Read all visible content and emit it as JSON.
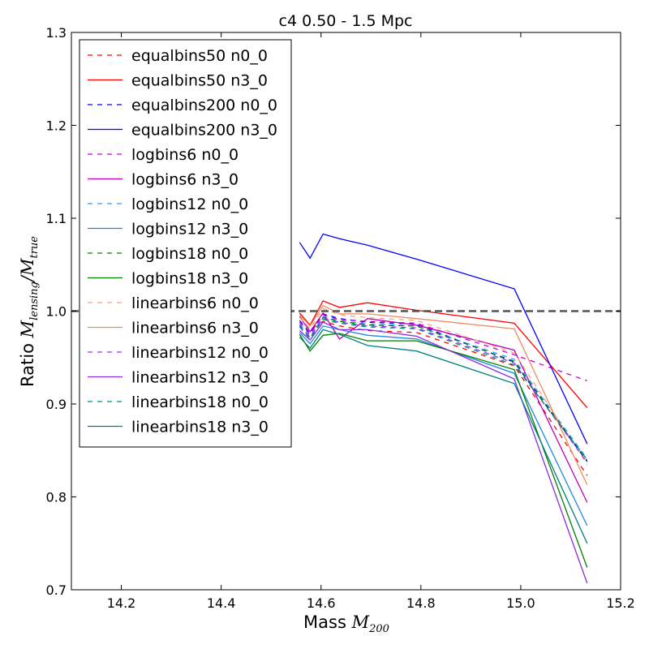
{
  "chart_data": {
    "type": "line",
    "title": "c4 0.50 - 1.5 Mpc",
    "xlabel_text": "Mass ",
    "xlabel_math": "M",
    "xlabel_sub": "200",
    "ylabel_text": "Ratio ",
    "ylabel_math_1": "M",
    "ylabel_sub_1": "lensing",
    "ylabel_slash": "/",
    "ylabel_math_2": "M",
    "ylabel_sub_2": "true",
    "xlim": [
      14.1,
      15.2
    ],
    "ylim": [
      0.7,
      1.3
    ],
    "xticks": [
      14.2,
      14.4,
      14.6,
      14.8,
      15.0,
      15.2
    ],
    "xtick_labels": [
      "14.2",
      "14.4",
      "14.6",
      "14.8",
      "15.0",
      "15.2"
    ],
    "yticks": [
      0.7,
      0.8,
      0.9,
      1.0,
      1.1,
      1.2,
      1.3
    ],
    "ytick_labels": [
      "0.7",
      "0.8",
      "0.9",
      "1.0",
      "1.1",
      "1.2",
      "1.3"
    ],
    "reference_line": {
      "y": 1.0,
      "color": "#555555",
      "style": "dashed"
    },
    "legend_placement": "upper-left",
    "x": [
      14.557,
      14.578,
      14.604,
      14.637,
      14.693,
      14.791,
      14.987,
      15.133
    ],
    "series": [
      {
        "name": "equalbins50 n0_0",
        "color": "#ff0000",
        "style": "dashed",
        "values": [
          0.994,
          0.98,
          0.989,
          0.984,
          0.979,
          0.977,
          0.941,
          0.823
        ]
      },
      {
        "name": "equalbins50 n3_0",
        "color": "#ff0000",
        "style": "solid",
        "values": [
          0.998,
          0.985,
          1.011,
          1.004,
          1.009,
          1.001,
          0.987,
          0.896
        ]
      },
      {
        "name": "equalbins200 n0_0",
        "color": "#0000ff",
        "style": "dashed",
        "values": [
          0.99,
          0.976,
          0.997,
          0.992,
          0.988,
          0.986,
          0.945,
          0.838
        ]
      },
      {
        "name": "equalbins200 n3_0",
        "color": "#0000ff",
        "style": "solid",
        "values": [
          1.074,
          1.057,
          1.083,
          1.078,
          1.071,
          1.056,
          1.024,
          0.857
        ]
      },
      {
        "name": "logbins6 n0_0",
        "color": "#cc00cc",
        "style": "dashed",
        "values": [
          0.988,
          0.975,
          0.996,
          0.991,
          0.989,
          0.987,
          0.953,
          0.925
        ]
      },
      {
        "name": "logbins6 n3_0",
        "color": "#bb00bb",
        "style": "solid",
        "values": [
          0.994,
          0.978,
          0.998,
          0.97,
          0.992,
          0.985,
          0.958,
          0.794
        ]
      },
      {
        "name": "logbins12 n0_0",
        "color": "#3399ff",
        "style": "dashed",
        "values": [
          0.986,
          0.973,
          0.994,
          0.99,
          0.986,
          0.984,
          0.948,
          0.841
        ]
      },
      {
        "name": "logbins12 n3_0",
        "color": "#1e88e5",
        "style": "solid",
        "values": [
          0.977,
          0.965,
          0.984,
          0.98,
          0.974,
          0.97,
          0.933,
          0.769
        ]
      },
      {
        "name": "logbins18 n0_0",
        "color": "#008000",
        "style": "dashed",
        "values": [
          0.985,
          0.971,
          0.993,
          0.989,
          0.985,
          0.984,
          0.946,
          0.839
        ]
      },
      {
        "name": "logbins18 n3_0",
        "color": "#008000",
        "style": "solid",
        "values": [
          0.975,
          0.957,
          0.974,
          0.976,
          0.968,
          0.968,
          0.937,
          0.724
        ]
      },
      {
        "name": "linearbins6 n0_0",
        "color": "#f4a582",
        "style": "dashed",
        "values": [
          0.993,
          0.981,
          1.003,
          0.996,
          0.993,
          0.99,
          0.955,
          0.835
        ]
      },
      {
        "name": "linearbins6 n3_0",
        "color": "#ef8a62",
        "style": "solid",
        "values": [
          0.996,
          0.984,
          1.006,
          0.997,
          0.997,
          0.992,
          0.981,
          0.813
        ]
      },
      {
        "name": "linearbins12 n0_0",
        "color": "#9933ff",
        "style": "dashed",
        "values": [
          0.984,
          0.972,
          0.992,
          0.988,
          0.984,
          0.982,
          0.944,
          0.837
        ]
      },
      {
        "name": "linearbins12 n3_0",
        "color": "#8a2be2",
        "style": "solid",
        "values": [
          0.979,
          0.969,
          0.988,
          0.98,
          0.98,
          0.973,
          0.927,
          0.707
        ]
      },
      {
        "name": "linearbins18 n0_0",
        "color": "#008b8b",
        "style": "dashed",
        "values": [
          0.983,
          0.97,
          0.991,
          0.987,
          0.983,
          0.981,
          0.942,
          0.84
        ]
      },
      {
        "name": "linearbins18 n3_0",
        "color": "#008080",
        "style": "solid",
        "values": [
          0.972,
          0.96,
          0.98,
          0.975,
          0.963,
          0.957,
          0.922,
          0.75
        ]
      }
    ]
  }
}
